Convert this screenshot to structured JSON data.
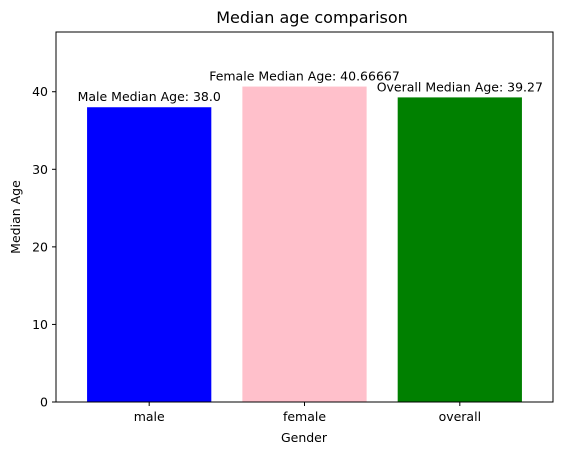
{
  "chart_data": {
    "type": "bar",
    "title": "Median age comparison",
    "xlabel": "Gender",
    "ylabel": "Median Age",
    "categories": [
      "male",
      "female",
      "overall"
    ],
    "values": [
      38.0,
      40.66667,
      39.27
    ],
    "colors": [
      "#0000ff",
      "#ffc0cb",
      "#008000"
    ],
    "data_labels": [
      "Male Median Age: 38.0",
      "Female Median Age: 40.66667",
      "Overall Median Age: 39.27"
    ],
    "ylim": [
      0,
      47.7
    ],
    "yticks": [
      0,
      10,
      20,
      30,
      40
    ],
    "grid": false,
    "legend": "none"
  }
}
